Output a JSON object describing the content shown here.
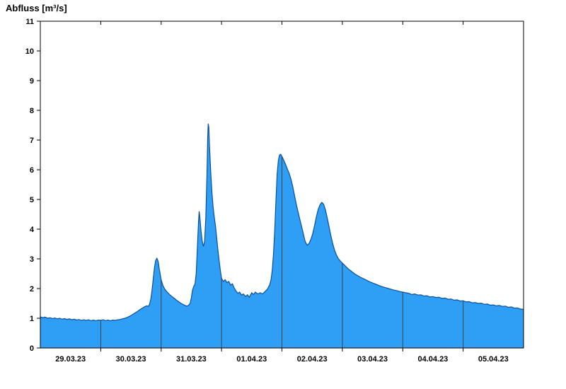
{
  "title": "Abfluss [m³/s]",
  "chart_data": {
    "type": "area",
    "title": "Abfluss [m³/s]",
    "ylabel": "Abfluss [m³/s]",
    "xlabel": "",
    "ylim": [
      0,
      11
    ],
    "y_ticks": [
      0,
      1,
      2,
      3,
      4,
      5,
      6,
      7,
      8,
      9,
      10,
      11
    ],
    "x_categories": [
      "29.03.23",
      "30.03.23",
      "31.03.23",
      "01.04.23",
      "02.04.23",
      "03.04.23",
      "04.04.23",
      "05.04.23"
    ],
    "x_span_days": 8,
    "grid": "vertical-day-boundaries",
    "legend": "none",
    "fill_color": "#2F9FF5",
    "line_color": "#0B4F9E",
    "grid_color": "#404040",
    "axis_color": "#000000",
    "points": [
      [
        0,
        1.05
      ],
      [
        0.04,
        1.02
      ],
      [
        0.08,
        1.04
      ],
      [
        0.12,
        1.0
      ],
      [
        0.16,
        1.02
      ],
      [
        0.2,
        0.99
      ],
      [
        0.24,
        1.01
      ],
      [
        0.28,
        0.98
      ],
      [
        0.32,
        1.0
      ],
      [
        0.36,
        0.97
      ],
      [
        0.4,
        0.99
      ],
      [
        0.44,
        0.96
      ],
      [
        0.48,
        0.98
      ],
      [
        0.52,
        0.95
      ],
      [
        0.56,
        0.97
      ],
      [
        0.6,
        0.94
      ],
      [
        0.64,
        0.96
      ],
      [
        0.68,
        0.93
      ],
      [
        0.72,
        0.95
      ],
      [
        0.76,
        0.93
      ],
      [
        0.8,
        0.95
      ],
      [
        0.84,
        0.92
      ],
      [
        0.88,
        0.94
      ],
      [
        0.92,
        0.92
      ],
      [
        0.96,
        0.94
      ],
      [
        1.0,
        0.93
      ],
      [
        1.04,
        0.95
      ],
      [
        1.08,
        0.92
      ],
      [
        1.12,
        0.94
      ],
      [
        1.16,
        0.92
      ],
      [
        1.2,
        0.94
      ],
      [
        1.24,
        0.93
      ],
      [
        1.28,
        0.95
      ],
      [
        1.32,
        0.96
      ],
      [
        1.36,
        0.98
      ],
      [
        1.4,
        1.0
      ],
      [
        1.44,
        1.03
      ],
      [
        1.48,
        1.07
      ],
      [
        1.52,
        1.12
      ],
      [
        1.56,
        1.17
      ],
      [
        1.6,
        1.22
      ],
      [
        1.64,
        1.28
      ],
      [
        1.68,
        1.33
      ],
      [
        1.72,
        1.38
      ],
      [
        1.76,
        1.42
      ],
      [
        1.79,
        1.4
      ],
      [
        1.81,
        1.48
      ],
      [
        1.83,
        1.65
      ],
      [
        1.85,
        1.95
      ],
      [
        1.87,
        2.35
      ],
      [
        1.89,
        2.72
      ],
      [
        1.91,
        2.95
      ],
      [
        1.93,
        3.02
      ],
      [
        1.95,
        2.92
      ],
      [
        1.97,
        2.65
      ],
      [
        2.0,
        2.3
      ],
      [
        2.03,
        2.1
      ],
      [
        2.06,
        1.98
      ],
      [
        2.1,
        1.88
      ],
      [
        2.14,
        1.8
      ],
      [
        2.18,
        1.73
      ],
      [
        2.22,
        1.67
      ],
      [
        2.26,
        1.6
      ],
      [
        2.3,
        1.54
      ],
      [
        2.34,
        1.49
      ],
      [
        2.38,
        1.45
      ],
      [
        2.42,
        1.41
      ],
      [
        2.45,
        1.43
      ],
      [
        2.48,
        1.5
      ],
      [
        2.5,
        1.68
      ],
      [
        2.52,
        1.95
      ],
      [
        2.54,
        2.08
      ],
      [
        2.56,
        2.15
      ],
      [
        2.58,
        2.5
      ],
      [
        2.6,
        3.4
      ],
      [
        2.62,
        4.3
      ],
      [
        2.63,
        4.6
      ],
      [
        2.64,
        4.42
      ],
      [
        2.66,
        3.95
      ],
      [
        2.68,
        3.6
      ],
      [
        2.7,
        3.42
      ],
      [
        2.72,
        3.58
      ],
      [
        2.74,
        4.4
      ],
      [
        2.76,
        5.9
      ],
      [
        2.77,
        7.05
      ],
      [
        2.78,
        7.55
      ],
      [
        2.79,
        7.42
      ],
      [
        2.8,
        6.85
      ],
      [
        2.82,
        5.95
      ],
      [
        2.84,
        5.25
      ],
      [
        2.86,
        4.75
      ],
      [
        2.88,
        4.4
      ],
      [
        2.9,
        4.1
      ],
      [
        2.92,
        3.7
      ],
      [
        2.94,
        3.3
      ],
      [
        2.96,
        2.95
      ],
      [
        2.98,
        2.62
      ],
      [
        3.0,
        2.35
      ],
      [
        3.03,
        2.24
      ],
      [
        3.06,
        2.3
      ],
      [
        3.09,
        2.2
      ],
      [
        3.12,
        2.24
      ],
      [
        3.15,
        2.12
      ],
      [
        3.18,
        2.16
      ],
      [
        3.21,
        2.02
      ],
      [
        3.24,
        1.92
      ],
      [
        3.27,
        1.84
      ],
      [
        3.3,
        1.88
      ],
      [
        3.33,
        1.78
      ],
      [
        3.36,
        1.82
      ],
      [
        3.4,
        1.73
      ],
      [
        3.43,
        1.79
      ],
      [
        3.46,
        1.71
      ],
      [
        3.5,
        1.86
      ],
      [
        3.53,
        1.8
      ],
      [
        3.56,
        1.88
      ],
      [
        3.6,
        1.82
      ],
      [
        3.64,
        1.86
      ],
      [
        3.68,
        1.82
      ],
      [
        3.72,
        1.9
      ],
      [
        3.76,
        1.98
      ],
      [
        3.8,
        2.14
      ],
      [
        3.82,
        2.3
      ],
      [
        3.84,
        2.62
      ],
      [
        3.86,
        3.15
      ],
      [
        3.88,
        3.95
      ],
      [
        3.9,
        4.95
      ],
      [
        3.92,
        5.85
      ],
      [
        3.94,
        6.3
      ],
      [
        3.96,
        6.5
      ],
      [
        3.98,
        6.52
      ],
      [
        4.0,
        6.45
      ],
      [
        4.03,
        6.32
      ],
      [
        4.06,
        6.18
      ],
      [
        4.09,
        6.02
      ],
      [
        4.12,
        5.88
      ],
      [
        4.15,
        5.68
      ],
      [
        4.18,
        5.42
      ],
      [
        4.21,
        5.12
      ],
      [
        4.24,
        4.82
      ],
      [
        4.27,
        4.55
      ],
      [
        4.3,
        4.3
      ],
      [
        4.33,
        4.05
      ],
      [
        4.36,
        3.8
      ],
      [
        4.38,
        3.62
      ],
      [
        4.4,
        3.52
      ],
      [
        4.42,
        3.46
      ],
      [
        4.45,
        3.52
      ],
      [
        4.48,
        3.66
      ],
      [
        4.51,
        3.85
      ],
      [
        4.54,
        4.12
      ],
      [
        4.57,
        4.42
      ],
      [
        4.6,
        4.66
      ],
      [
        4.63,
        4.82
      ],
      [
        4.66,
        4.9
      ],
      [
        4.69,
        4.84
      ],
      [
        4.72,
        4.65
      ],
      [
        4.75,
        4.38
      ],
      [
        4.78,
        4.08
      ],
      [
        4.81,
        3.78
      ],
      [
        4.84,
        3.52
      ],
      [
        4.87,
        3.3
      ],
      [
        4.9,
        3.14
      ],
      [
        4.93,
        3.02
      ],
      [
        4.96,
        2.94
      ],
      [
        5.0,
        2.86
      ],
      [
        5.05,
        2.76
      ],
      [
        5.1,
        2.66
      ],
      [
        5.15,
        2.58
      ],
      [
        5.2,
        2.5
      ],
      [
        5.25,
        2.44
      ],
      [
        5.3,
        2.38
      ],
      [
        5.35,
        2.33
      ],
      [
        5.4,
        2.28
      ],
      [
        5.45,
        2.23
      ],
      [
        5.5,
        2.19
      ],
      [
        5.55,
        2.15
      ],
      [
        5.6,
        2.11
      ],
      [
        5.65,
        2.07
      ],
      [
        5.7,
        2.04
      ],
      [
        5.75,
        2.01
      ],
      [
        5.8,
        1.98
      ],
      [
        5.85,
        1.95
      ],
      [
        5.9,
        1.93
      ],
      [
        5.95,
        1.9
      ],
      [
        6.0,
        1.88
      ],
      [
        6.05,
        1.86
      ],
      [
        6.1,
        1.84
      ],
      [
        6.15,
        1.8
      ],
      [
        6.2,
        1.82
      ],
      [
        6.25,
        1.78
      ],
      [
        6.3,
        1.79
      ],
      [
        6.35,
        1.75
      ],
      [
        6.4,
        1.76
      ],
      [
        6.45,
        1.72
      ],
      [
        6.5,
        1.73
      ],
      [
        6.55,
        1.7
      ],
      [
        6.6,
        1.71
      ],
      [
        6.65,
        1.67
      ],
      [
        6.7,
        1.68
      ],
      [
        6.75,
        1.64
      ],
      [
        6.8,
        1.65
      ],
      [
        6.85,
        1.61
      ],
      [
        6.9,
        1.62
      ],
      [
        6.95,
        1.58
      ],
      [
        7.0,
        1.59
      ],
      [
        7.05,
        1.55
      ],
      [
        7.1,
        1.56
      ],
      [
        7.15,
        1.52
      ],
      [
        7.2,
        1.53
      ],
      [
        7.25,
        1.5
      ],
      [
        7.3,
        1.51
      ],
      [
        7.35,
        1.47
      ],
      [
        7.4,
        1.48
      ],
      [
        7.45,
        1.44
      ],
      [
        7.5,
        1.45
      ],
      [
        7.55,
        1.42
      ],
      [
        7.6,
        1.43
      ],
      [
        7.65,
        1.4
      ],
      [
        7.7,
        1.41
      ],
      [
        7.75,
        1.37
      ],
      [
        7.8,
        1.38
      ],
      [
        7.85,
        1.34
      ],
      [
        7.9,
        1.35
      ],
      [
        7.95,
        1.31
      ],
      [
        8.0,
        1.3
      ]
    ]
  }
}
